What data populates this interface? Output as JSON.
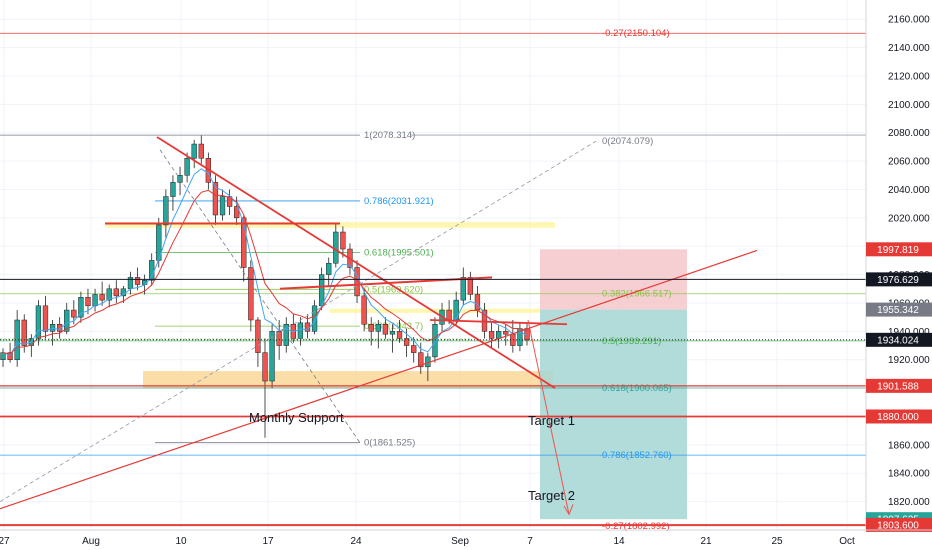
{
  "colors": {
    "background": "#ffffff",
    "grid": "#f0f3fa",
    "candle_up": "#26a69a",
    "candle_down": "#ef5350",
    "trend_red": "#e53935",
    "fib_gray": "#787b86",
    "fib_blue": "#2196f3",
    "fib_green": "#4caf50",
    "fib_lime": "#8bc34a",
    "fib_teal": "#26a69a",
    "yellow_zone": "#fff59d",
    "orange_zone": "#f9d28a",
    "stop_zone": "#f4c7ca",
    "target_zone": "#a5d6d2",
    "ema_fast": "#42a5f5",
    "ema_slow": "#e53935"
  },
  "chart_data": {
    "type": "candlestick",
    "title": "",
    "ylim": [
      1800,
      2170
    ],
    "y_ticks": [
      "1820.000",
      "1840.000",
      "1860.000",
      "1880.000",
      "1900.000",
      "1920.000",
      "1940.000",
      "1960.000",
      "1980.000",
      "2000.000",
      "2020.000",
      "2040.000",
      "2060.000",
      "2080.000",
      "2100.000",
      "2120.000",
      "2140.000",
      "2160.000"
    ],
    "x_ticks": [
      "27",
      "Aug",
      "10",
      "17",
      "24",
      "Sep",
      "7",
      "14",
      "21",
      "25",
      "Oct"
    ],
    "price_labels": [
      {
        "text": "1997.819",
        "value": 1997.819,
        "style": "red"
      },
      {
        "text": "1976.629",
        "value": 1976.629,
        "style": "dark"
      },
      {
        "text": "1955.342",
        "value": 1955.342,
        "style": "gray"
      },
      {
        "text": "1934.024",
        "value": 1934.024,
        "style": "dark"
      },
      {
        "text": "1901.588",
        "value": 1901.588,
        "style": "red"
      },
      {
        "text": "1880.000",
        "value": 1880.0,
        "style": "red"
      },
      {
        "text": "1807.625",
        "value": 1807.625,
        "style": "teal"
      },
      {
        "text": "1803.600",
        "value": 1803.6,
        "style": "red"
      }
    ],
    "fib_top": {
      "text": "-0.27(2150.104)",
      "value": 2150.104
    },
    "fib_ext_top": {
      "text": "0(2074.079)",
      "value": 2074.079
    },
    "fib_retracement_1": [
      {
        "text": "1(2078.314)",
        "value": 2078.314,
        "color": "gray"
      },
      {
        "text": "0.786(2031.921)",
        "value": 2031.921,
        "color": "blue"
      },
      {
        "text": "0.618(1995.501)",
        "value": 1995.501,
        "color": "green"
      },
      {
        "text": "0.5(1969.620)",
        "value": 1969.62,
        "color": "lime"
      },
      {
        "text": "0.382(1943.7)",
        "value": 1943.7,
        "color": "lime"
      },
      {
        "text": "0(1861.525)",
        "value": 1861.525,
        "color": "gray"
      }
    ],
    "fib_retracement_2": [
      {
        "text": "0.382(1966.517)",
        "value": 1966.517,
        "color": "lime"
      },
      {
        "text": "0.5(1933.291)",
        "value": 1933.291,
        "color": "green"
      },
      {
        "text": "0.618(1900.065)",
        "value": 1900.065,
        "color": "teal"
      },
      {
        "text": "0.786(1852.760)",
        "value": 1852.76,
        "color": "blue"
      },
      {
        "text": "-0.27(1802.992)",
        "value": 1802.992,
        "color": "red"
      }
    ],
    "annotations": {
      "monthly_support": "Monthly Support",
      "target_1": "Target 1",
      "target_2": "Target 2"
    },
    "zones": {
      "resistance_zone": [
        2013,
        2017
      ],
      "support_zone": [
        1900,
        1912
      ],
      "stop_zone": [
        1955.342,
        1997.819
      ],
      "target_zone": [
        1807.625,
        1955.342
      ]
    },
    "candles": [
      [
        1920,
        1928,
        1915,
        1925
      ],
      [
        1925,
        1932,
        1918,
        1920
      ],
      [
        1920,
        1955,
        1915,
        1948
      ],
      [
        1948,
        1952,
        1925,
        1930
      ],
      [
        1930,
        1938,
        1922,
        1935
      ],
      [
        1935,
        1962,
        1930,
        1958
      ],
      [
        1958,
        1965,
        1935,
        1940
      ],
      [
        1940,
        1948,
        1930,
        1945
      ],
      [
        1945,
        1950,
        1935,
        1940
      ],
      [
        1940,
        1960,
        1938,
        1955
      ],
      [
        1955,
        1962,
        1945,
        1950
      ],
      [
        1950,
        1968,
        1946,
        1964
      ],
      [
        1964,
        1970,
        1952,
        1958
      ],
      [
        1958,
        1970,
        1954,
        1966
      ],
      [
        1966,
        1975,
        1958,
        1962
      ],
      [
        1962,
        1973,
        1957,
        1970
      ],
      [
        1970,
        1976,
        1960,
        1965
      ],
      [
        1965,
        1972,
        1960,
        1970
      ],
      [
        1970,
        1982,
        1966,
        1978
      ],
      [
        1978,
        1985,
        1969,
        1973
      ],
      [
        1973,
        1980,
        1966,
        1976
      ],
      [
        1976,
        1995,
        1972,
        1990
      ],
      [
        1990,
        2020,
        1985,
        2015
      ],
      [
        2015,
        2040,
        2005,
        2035
      ],
      [
        2035,
        2050,
        2025,
        2045
      ],
      [
        2045,
        2056,
        2036,
        2050
      ],
      [
        2050,
        2066,
        2045,
        2062
      ],
      [
        2062,
        2075,
        2055,
        2072
      ],
      [
        2072,
        2078,
        2058,
        2062
      ],
      [
        2062,
        2066,
        2040,
        2045
      ],
      [
        2045,
        2050,
        2015,
        2022
      ],
      [
        2022,
        2040,
        2018,
        2035
      ],
      [
        2035,
        2040,
        2022,
        2028
      ],
      [
        2028,
        2035,
        2015,
        2020
      ],
      [
        2020,
        2022,
        1975,
        1985
      ],
      [
        1985,
        1990,
        1940,
        1948
      ],
      [
        1948,
        1950,
        1915,
        1925
      ],
      [
        1925,
        1935,
        1865,
        1905
      ],
      [
        1905,
        1945,
        1900,
        1940
      ],
      [
        1940,
        1948,
        1920,
        1930
      ],
      [
        1930,
        1950,
        1925,
        1945
      ],
      [
        1945,
        1952,
        1932,
        1935
      ],
      [
        1935,
        1950,
        1930,
        1946
      ],
      [
        1946,
        1952,
        1935,
        1940
      ],
      [
        1940,
        1962,
        1938,
        1958
      ],
      [
        1958,
        1985,
        1955,
        1980
      ],
      [
        1980,
        1992,
        1972,
        1988
      ],
      [
        1988,
        2016,
        1985,
        2010
      ],
      [
        2010,
        2014,
        1992,
        1998
      ],
      [
        1998,
        2002,
        1980,
        1985
      ],
      [
        1985,
        1990,
        1960,
        1965
      ],
      [
        1965,
        1970,
        1940,
        1945
      ],
      [
        1945,
        1950,
        1930,
        1940
      ],
      [
        1940,
        1948,
        1928,
        1945
      ],
      [
        1945,
        1950,
        1935,
        1938
      ],
      [
        1938,
        1945,
        1925,
        1940
      ],
      [
        1940,
        1948,
        1932,
        1935
      ],
      [
        1935,
        1942,
        1922,
        1930
      ],
      [
        1930,
        1936,
        1918,
        1925
      ],
      [
        1925,
        1932,
        1910,
        1915
      ],
      [
        1915,
        1925,
        1905,
        1922
      ],
      [
        1922,
        1950,
        1918,
        1945
      ],
      [
        1945,
        1960,
        1940,
        1955
      ],
      [
        1955,
        1962,
        1945,
        1948
      ],
      [
        1948,
        1968,
        1944,
        1962
      ],
      [
        1962,
        1985,
        1958,
        1978
      ],
      [
        1978,
        1982,
        1962,
        1966
      ],
      [
        1966,
        1972,
        1950,
        1955
      ],
      [
        1955,
        1960,
        1935,
        1940
      ],
      [
        1940,
        1946,
        1928,
        1935
      ],
      [
        1935,
        1944,
        1928,
        1940
      ],
      [
        1940,
        1945,
        1930,
        1938
      ],
      [
        1938,
        1948,
        1925,
        1930
      ],
      [
        1930,
        1946,
        1926,
        1942
      ],
      [
        1942,
        1946,
        1930,
        1934
      ]
    ],
    "grid": true,
    "legend": "none"
  }
}
